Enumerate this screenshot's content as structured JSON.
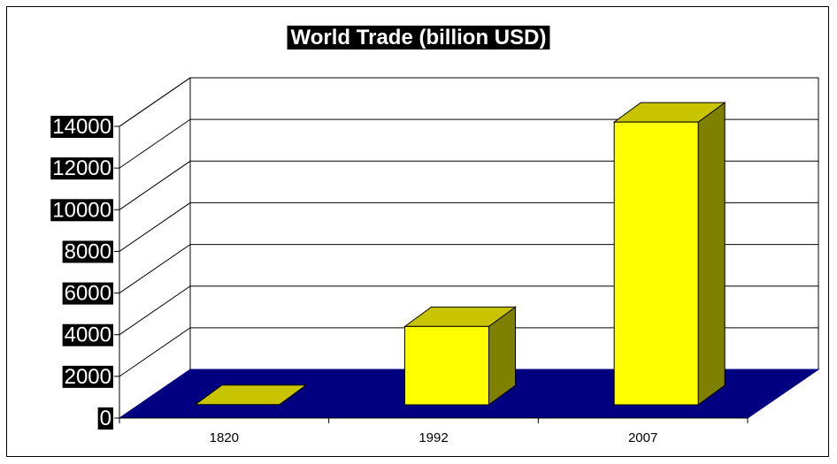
{
  "chart_data": {
    "type": "bar",
    "style": "3d-column",
    "title": "World Trade (billion USD)",
    "xlabel": "",
    "ylabel": "",
    "categories": [
      "1820",
      "1992",
      "2007"
    ],
    "values": [
      10,
      3760,
      13570
    ],
    "ylim": [
      0,
      14000
    ],
    "yticks": [
      "0",
      "2000",
      "4000",
      "6000",
      "8000",
      "10000",
      "12000",
      "14000"
    ],
    "grid": true,
    "legend": "none",
    "colors": {
      "bar_front": "#ffff00",
      "bar_top": "#c8c400",
      "bar_side": "#808000",
      "floor": "#000080",
      "grid": "#000000",
      "label_bg": "#000000",
      "label_fg": "#ffffff"
    }
  }
}
